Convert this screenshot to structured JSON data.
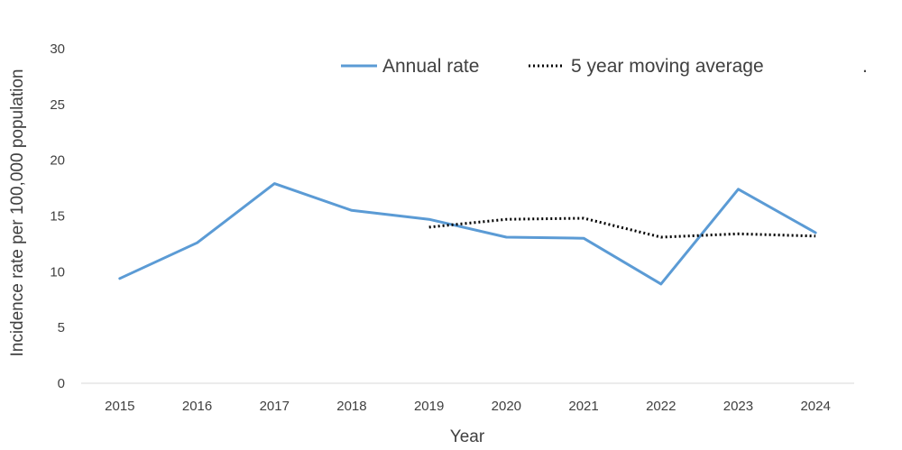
{
  "chart_data": {
    "type": "line",
    "title": "",
    "xlabel": "Year",
    "ylabel": "Incidence rate per 100,000 population",
    "categories": [
      "2015",
      "2016",
      "2017",
      "2018",
      "2019",
      "2020",
      "2021",
      "2022",
      "2023",
      "2024"
    ],
    "ylim": [
      0,
      30
    ],
    "yticks": [
      "0",
      "5",
      "10",
      "15",
      "20",
      "25",
      "30"
    ],
    "grid": false,
    "legend_position": "top",
    "legend_extra": ".",
    "series": [
      {
        "name": "Annual rate",
        "style": "solid",
        "color": "#5B9BD5",
        "values": [
          9.4,
          12.6,
          17.9,
          15.5,
          14.7,
          13.1,
          13.0,
          8.9,
          17.4,
          13.5
        ]
      },
      {
        "name": "5 year moving average",
        "style": "dotted",
        "color": "#000000",
        "values": [
          null,
          null,
          null,
          null,
          14.0,
          14.7,
          14.8,
          13.1,
          13.4,
          13.2
        ]
      }
    ]
  }
}
